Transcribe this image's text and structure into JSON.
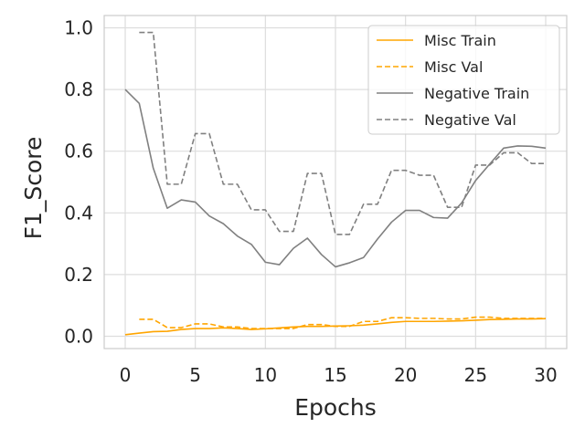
{
  "chart_data": {
    "type": "line",
    "title": "",
    "xlabel": "Epochs",
    "ylabel": "F1_Score",
    "xlim": [
      -1.5,
      31.5
    ],
    "ylim": [
      -0.04,
      1.04
    ],
    "xticks": [
      0,
      5,
      10,
      15,
      20,
      25,
      30
    ],
    "yticks": [
      0.0,
      0.2,
      0.4,
      0.6,
      0.8,
      1.0
    ],
    "xtick_labels": [
      "0",
      "5",
      "10",
      "15",
      "20",
      "25",
      "30"
    ],
    "ytick_labels": [
      "0.0",
      "0.2",
      "0.4",
      "0.6",
      "0.8",
      "1.0"
    ],
    "grid": true,
    "legend_position": "top-right",
    "series": [
      {
        "name": "Misc Train",
        "color": "#ffa500",
        "dash": "solid",
        "x": [
          0,
          1,
          2,
          3,
          4,
          5,
          6,
          7,
          8,
          9,
          10,
          11,
          12,
          13,
          14,
          15,
          16,
          17,
          18,
          19,
          20,
          21,
          22,
          23,
          24,
          25,
          26,
          27,
          28,
          29,
          30
        ],
        "y": [
          0.005,
          0.01,
          0.015,
          0.016,
          0.022,
          0.025,
          0.025,
          0.027,
          0.025,
          0.022,
          0.024,
          0.027,
          0.03,
          0.032,
          0.032,
          0.033,
          0.034,
          0.036,
          0.04,
          0.045,
          0.048,
          0.048,
          0.048,
          0.049,
          0.05,
          0.052,
          0.054,
          0.055,
          0.056,
          0.056,
          0.057
        ]
      },
      {
        "name": "Misc Val",
        "color": "#ffa500",
        "dash": "dashed",
        "x": [
          1,
          2,
          3,
          4,
          5,
          6,
          7,
          8,
          9,
          10,
          11,
          12,
          13,
          14,
          15,
          16,
          17,
          18,
          19,
          20,
          21,
          22,
          23,
          24,
          25,
          26,
          27,
          28,
          29,
          30
        ],
        "y": [
          0.055,
          0.055,
          0.028,
          0.028,
          0.04,
          0.04,
          0.03,
          0.03,
          0.025,
          0.025,
          0.025,
          0.025,
          0.038,
          0.038,
          0.032,
          0.032,
          0.048,
          0.048,
          0.06,
          0.06,
          0.058,
          0.058,
          0.056,
          0.056,
          0.062,
          0.062,
          0.058,
          0.058,
          0.058,
          0.058
        ]
      },
      {
        "name": "Negative Train",
        "color": "#808080",
        "dash": "solid",
        "x": [
          0,
          1,
          2,
          3,
          4,
          5,
          6,
          7,
          8,
          9,
          10,
          11,
          12,
          13,
          14,
          15,
          16,
          17,
          18,
          19,
          20,
          21,
          22,
          23,
          24,
          25,
          26,
          27,
          28,
          29,
          30
        ],
        "y": [
          0.8,
          0.755,
          0.545,
          0.415,
          0.442,
          0.435,
          0.39,
          0.365,
          0.325,
          0.298,
          0.24,
          0.232,
          0.285,
          0.318,
          0.265,
          0.225,
          0.238,
          0.255,
          0.315,
          0.37,
          0.408,
          0.408,
          0.385,
          0.383,
          0.432,
          0.505,
          0.558,
          0.61,
          0.617,
          0.616,
          0.61
        ]
      },
      {
        "name": "Negative Val",
        "color": "#808080",
        "dash": "dashed",
        "x": [
          1,
          2,
          3,
          4,
          5,
          6,
          7,
          8,
          9,
          10,
          11,
          12,
          13,
          14,
          15,
          16,
          17,
          18,
          19,
          20,
          21,
          22,
          23,
          24,
          25,
          26,
          27,
          28,
          29,
          30
        ],
        "y": [
          0.985,
          0.985,
          0.493,
          0.493,
          0.657,
          0.657,
          0.493,
          0.493,
          0.41,
          0.41,
          0.34,
          0.34,
          0.528,
          0.528,
          0.33,
          0.33,
          0.428,
          0.428,
          0.538,
          0.538,
          0.522,
          0.522,
          0.418,
          0.418,
          0.555,
          0.555,
          0.595,
          0.595,
          0.56,
          0.56
        ]
      }
    ]
  }
}
